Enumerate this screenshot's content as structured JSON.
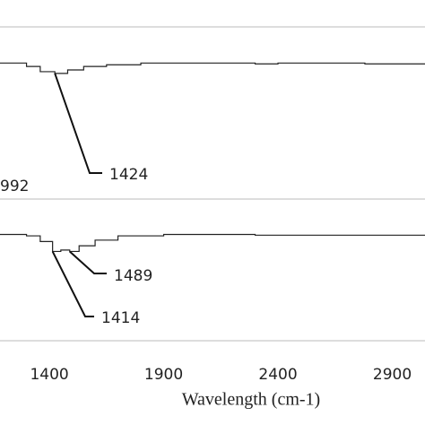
{
  "chart_data": [
    {
      "type": "line",
      "xlim": [
        1184,
        3043
      ],
      "ylim": [
        0,
        100
      ],
      "series": [
        {
          "color": "#222222",
          "x": [
            1184,
            1250,
            1300,
            1360,
            1424,
            1480,
            1550,
            1650,
            1800,
            2200,
            2300,
            2400,
            2750,
            2780,
            3043
          ],
          "values": [
            79,
            79,
            77,
            74,
            73,
            75,
            77,
            78,
            79,
            79,
            78.5,
            79,
            79,
            78.5,
            78.5
          ]
        }
      ],
      "annotations": [
        {
          "text": "1424",
          "x": 1424,
          "y": 73
        },
        {
          "text": "992"
        }
      ]
    },
    {
      "type": "line",
      "xlim": [
        1184,
        3043
      ],
      "ylim": [
        0,
        100
      ],
      "xticks": [
        1400,
        1900,
        2400,
        2900
      ],
      "xlabel": "Wavelength (cm-1)",
      "series": [
        {
          "color": "#222222",
          "x": [
            1184,
            1300,
            1360,
            1414,
            1450,
            1489,
            1530,
            1600,
            1700,
            1900,
            2200,
            2300,
            2750,
            3043
          ],
          "values": [
            75,
            74,
            70,
            63,
            64,
            63,
            67,
            71,
            74,
            75,
            75,
            74.5,
            74.5,
            74.5
          ]
        }
      ],
      "annotations": [
        {
          "text": "1489",
          "x": 1489,
          "y": 63
        },
        {
          "text": "1414",
          "x": 1414,
          "y": 63
        }
      ]
    }
  ]
}
